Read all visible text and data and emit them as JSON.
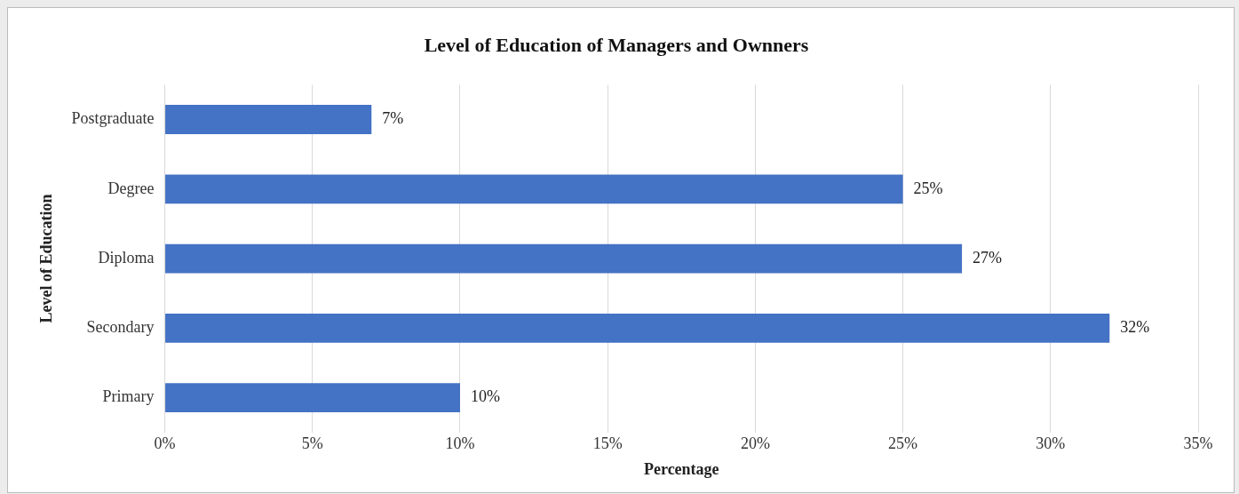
{
  "chart_data": {
    "type": "bar",
    "orientation": "horizontal",
    "title": "Level of Education of Managers and Ownners",
    "xlabel": "Percentage",
    "ylabel": "Level of Education",
    "categories": [
      "Postgraduate",
      "Degree",
      "Diploma",
      "Secondary",
      "Primary"
    ],
    "values": [
      7,
      25,
      27,
      32,
      10
    ],
    "value_labels": [
      "7%",
      "25%",
      "27%",
      "32%",
      "10%"
    ],
    "color": "#4472c4",
    "xlim": [
      0,
      35
    ],
    "xticks": [
      {
        "value": 0,
        "label": "0%"
      },
      {
        "value": 5,
        "label": "5%"
      },
      {
        "value": 10,
        "label": "10%"
      },
      {
        "value": 15,
        "label": "15%"
      },
      {
        "value": 20,
        "label": "20%"
      },
      {
        "value": 25,
        "label": "25%"
      },
      {
        "value": 30,
        "label": "30%"
      },
      {
        "value": 35,
        "label": "35%"
      }
    ],
    "grid": "x",
    "legend": false
  }
}
